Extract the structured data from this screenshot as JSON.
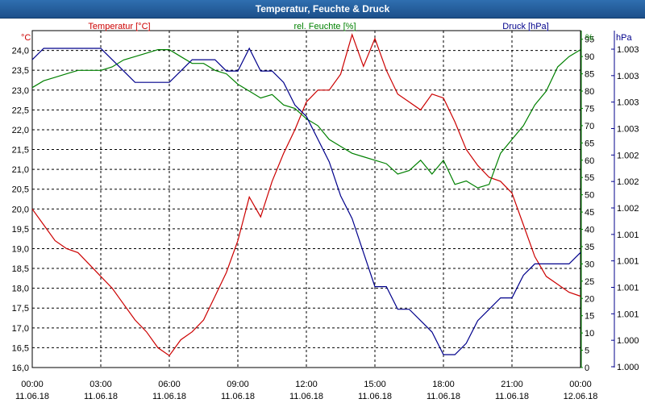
{
  "chart_data": {
    "type": "line",
    "title": "Temperatur, Feuchte & Druck",
    "xlabel": "",
    "x_ticks": [
      {
        "time": "00:00",
        "date": "11.06.18"
      },
      {
        "time": "03:00",
        "date": "11.06.18"
      },
      {
        "time": "06:00",
        "date": "11.06.18"
      },
      {
        "time": "09:00",
        "date": "11.06.18"
      },
      {
        "time": "12:00",
        "date": "11.06.18"
      },
      {
        "time": "15:00",
        "date": "11.06.18"
      },
      {
        "time": "18:00",
        "date": "11.06.18"
      },
      {
        "time": "21:00",
        "date": "11.06.18"
      },
      {
        "time": "00:00",
        "date": "12.06.18"
      }
    ],
    "xlim": [
      0,
      24
    ],
    "axes": {
      "temperature": {
        "label": "Temperatur [°C]",
        "unit": "°C",
        "ylim": [
          16.0,
          24.5
        ],
        "ticks": [
          "16,0",
          "16,5",
          "17,0",
          "17,5",
          "18,0",
          "18,5",
          "19,0",
          "19,5",
          "20,0",
          "20,5",
          "21,0",
          "21,5",
          "22,0",
          "22,5",
          "23,0",
          "23,5",
          "24,0"
        ]
      },
      "humidity": {
        "label": "rel. Feuchte [%]",
        "unit": "%",
        "ylim": [
          0,
          97.5
        ],
        "ticks": [
          "0",
          "5",
          "10",
          "15",
          "20",
          "25",
          "30",
          "35",
          "40",
          "45",
          "50",
          "55",
          "60",
          "65",
          "70",
          "75",
          "80",
          "85",
          "90",
          "95"
        ]
      },
      "pressure": {
        "label": "Druck [hPa]",
        "unit": "hPa",
        "ticks": [
          "1.000",
          "1.000",
          "1.001",
          "1.001",
          "1.001",
          "1.001",
          "1.002",
          "1.002",
          "1.002",
          "1.003",
          "1.003",
          "1.003",
          "1.003"
        ]
      }
    },
    "series": [
      {
        "name": "Temperatur",
        "axis": "temperature",
        "color": "#cc0000",
        "x": [
          0,
          0.5,
          1,
          1.5,
          2,
          2.5,
          3,
          3.5,
          4,
          4.5,
          5,
          5.5,
          6,
          6.5,
          7,
          7.5,
          8,
          8.5,
          9,
          9.5,
          10,
          10.5,
          11,
          11.5,
          12,
          12.5,
          13,
          13.5,
          14,
          14.5,
          15,
          15.5,
          16,
          16.5,
          17,
          17.5,
          18,
          18.5,
          19,
          19.5,
          20,
          20.5,
          21,
          21.5,
          22,
          22.5,
          23,
          23.5,
          24
        ],
        "values": [
          20.0,
          19.6,
          19.2,
          19.0,
          18.9,
          18.6,
          18.3,
          18.0,
          17.6,
          17.2,
          16.9,
          16.5,
          16.3,
          16.7,
          16.9,
          17.2,
          17.8,
          18.4,
          19.2,
          20.3,
          19.8,
          20.7,
          21.4,
          22.0,
          22.7,
          23.0,
          23.0,
          23.4,
          24.4,
          23.6,
          24.3,
          23.5,
          22.9,
          22.7,
          22.5,
          22.9,
          22.8,
          22.2,
          21.5,
          21.1,
          20.8,
          20.7,
          20.4,
          19.6,
          18.8,
          18.3,
          18.1,
          17.9,
          17.8
        ]
      },
      {
        "name": "rel. Feuchte",
        "axis": "humidity",
        "color": "#008000",
        "x": [
          0,
          0.5,
          1,
          1.5,
          2,
          2.5,
          3,
          3.5,
          4,
          4.5,
          5,
          5.5,
          6,
          6.5,
          7,
          7.5,
          8,
          8.5,
          9,
          9.5,
          10,
          10.5,
          11,
          11.5,
          12,
          12.5,
          13,
          13.5,
          14,
          14.5,
          15,
          15.5,
          16,
          16.5,
          17,
          17.5,
          18,
          18.5,
          19,
          19.5,
          20,
          20.5,
          21,
          21.5,
          22,
          22.5,
          23,
          23.5,
          24
        ],
        "values": [
          81,
          83,
          84,
          85,
          86,
          86,
          86,
          87,
          89,
          90,
          91,
          92,
          92,
          90,
          88,
          88,
          86,
          85,
          82,
          80,
          78,
          79,
          76,
          75,
          72,
          70,
          66,
          64,
          62,
          61,
          60,
          59,
          56,
          57,
          60,
          56,
          60,
          53,
          54,
          52,
          53,
          62,
          66,
          70,
          76,
          80,
          87,
          90,
          92
        ]
      },
      {
        "name": "Druck",
        "axis": "pressure",
        "color": "#00008b",
        "x": [
          0,
          0.5,
          1,
          1.5,
          2,
          2.5,
          3,
          3.5,
          4,
          4.5,
          5,
          5.5,
          6,
          6.5,
          7,
          7.5,
          8,
          8.5,
          9,
          9.5,
          10,
          10.5,
          11,
          11.5,
          12,
          12.5,
          13,
          13.5,
          14,
          14.5,
          15,
          15.5,
          16,
          16.5,
          17,
          17.5,
          18,
          18.5,
          19,
          19.5,
          20,
          20.5,
          21,
          21.5,
          22,
          22.5,
          23,
          23.5,
          24
        ],
        "values": [
          1003.0,
          1003.1,
          1003.1,
          1003.1,
          1003.1,
          1003.1,
          1003.1,
          1003.0,
          1002.9,
          1002.8,
          1002.8,
          1002.8,
          1002.8,
          1002.9,
          1003.0,
          1003.0,
          1003.0,
          1002.9,
          1002.9,
          1003.1,
          1002.9,
          1002.9,
          1002.8,
          1002.6,
          1002.5,
          1002.3,
          1002.1,
          1001.8,
          1001.6,
          1001.3,
          1001.0,
          1001.0,
          1000.8,
          1000.8,
          1000.7,
          1000.6,
          1000.4,
          1000.4,
          1000.5,
          1000.7,
          1000.8,
          1000.9,
          1000.9,
          1001.1,
          1001.2,
          1001.2,
          1001.2,
          1001.2,
          1001.3
        ]
      }
    ],
    "legend_position": "top",
    "grid": true
  }
}
